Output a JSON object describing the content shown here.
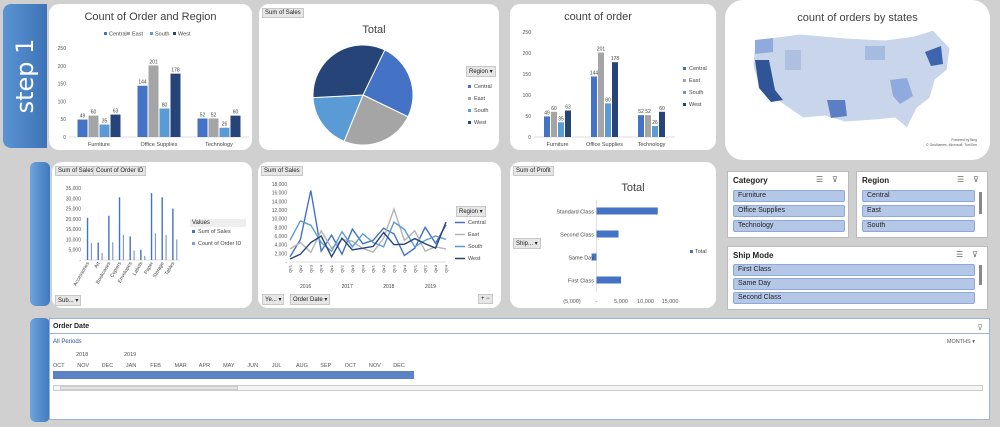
{
  "step_label": "step 1",
  "colors": {
    "central": "#4472c4",
    "east": "#a5a5a5",
    "south": "#5b9bd5",
    "west": "#264478"
  },
  "chart1": {
    "title": "Count of Order and Region"
  },
  "chart2": {
    "title": "count of order"
  },
  "pie": {
    "tag": "Sum of Sales",
    "title": "Total",
    "region_filter": "Region"
  },
  "map": {
    "title": "count of orders by states",
    "footer1": "Powered by Bing",
    "footer2": "© GeoNames, Microsoft, TomTom"
  },
  "sub_chart": {
    "tag1": "Sum of Sales",
    "tag2": "Count of Order ID",
    "values_label": "Values",
    "legend1": "Sum of Sales",
    "legend2": "Count of Order ID",
    "filter": "Sub..."
  },
  "line_chart": {
    "tag": "Sum of Sales",
    "region_filter": "Region",
    "filter1": "Ye...",
    "filter2": "Order Date"
  },
  "profit_chart": {
    "tag": "Sum of Profit",
    "title": "Total",
    "filter": "Ship...",
    "legend": "Total"
  },
  "slicers": {
    "category": {
      "title": "Category",
      "items": [
        "Furniture",
        "Office Supplies",
        "Technology"
      ]
    },
    "region": {
      "title": "Region",
      "items": [
        "Central",
        "East",
        "South"
      ]
    },
    "shipmode": {
      "title": "Ship Mode",
      "items": [
        "First Class",
        "Same Day",
        "Second Class"
      ]
    }
  },
  "timeline": {
    "title": "Order Date",
    "all_periods": "All Periods",
    "unit": "MONTHS",
    "years": [
      "2018",
      "2019"
    ],
    "months": [
      "OCT",
      "NOV",
      "DEC",
      "JAN",
      "FEB",
      "MAR",
      "APR",
      "MAY",
      "JUN",
      "JUL",
      "AUG",
      "SEP",
      "OCT",
      "NOV",
      "DEC"
    ]
  },
  "chart_data": [
    {
      "type": "bar",
      "title": "Count of Order and Region",
      "categories": [
        "Furniture",
        "Office Supplies",
        "Technology"
      ],
      "series": [
        {
          "name": "Central",
          "values": [
            49,
            144,
            52
          ]
        },
        {
          "name": "East",
          "values": [
            60,
            201,
            52
          ]
        },
        {
          "name": "South",
          "values": [
            35,
            80,
            26
          ]
        },
        {
          "name": "West",
          "values": [
            63,
            178,
            60
          ]
        }
      ],
      "ylim": [
        0,
        250
      ],
      "yticks": [
        "0",
        "50",
        "100",
        "150",
        "200",
        "250"
      ]
    },
    {
      "type": "bar",
      "title": "count of order",
      "categories": [
        "Furniture",
        "Office Supplies",
        "Technology"
      ],
      "series": [
        {
          "name": "Central",
          "values": [
            49,
            144,
            52
          ]
        },
        {
          "name": "East",
          "values": [
            60,
            201,
            52
          ]
        },
        {
          "name": "South",
          "values": [
            35,
            80,
            26
          ]
        },
        {
          "name": "West",
          "values": [
            63,
            178,
            60
          ]
        }
      ],
      "ylim": [
        0,
        250
      ],
      "yticks": [
        "0",
        "50",
        "100",
        "150",
        "200",
        "250"
      ]
    },
    {
      "type": "pie",
      "title": "Total",
      "slices": [
        {
          "name": "Central",
          "value": 25
        },
        {
          "name": "East",
          "value": 24
        },
        {
          "name": "South",
          "value": 18
        },
        {
          "name": "West",
          "value": 33
        }
      ]
    },
    {
      "type": "bar",
      "categories": [
        "Accessories",
        "Art",
        "Bookcases",
        "Copiers",
        "Envelopes",
        "Labels",
        "Paper",
        "Storage",
        "Tables"
      ],
      "series": [
        {
          "name": "Sum of Sales",
          "values": [
            20500,
            8500,
            21500,
            30500,
            11500,
            5000,
            32500,
            30500,
            25000
          ]
        }
      ],
      "ylim": [
        0,
        35000
      ],
      "yticks": [
        "-",
        "5,000",
        "10,000",
        "15,000",
        "20,000",
        "25,000",
        "30,000",
        "35,000"
      ]
    },
    {
      "type": "line",
      "categories": [
        "Qtr1",
        "Qtr2",
        "Qtr3",
        "Qtr4",
        "Qtr1",
        "Qtr2",
        "Qtr3",
        "Qtr4",
        "Qtr1",
        "Qtr2",
        "Qtr3",
        "Qtr4",
        "Qtr1",
        "Qtr2",
        "Qtr3",
        "Qtr4"
      ],
      "groups": [
        "2016",
        "2017",
        "2018",
        "2019"
      ],
      "series": [
        {
          "name": "Central",
          "values": [
            1200,
            5200,
            16500,
            2500,
            6200,
            1800,
            7600,
            4200,
            5000,
            7800,
            6500,
            1500,
            3200,
            8000,
            4300,
            8600
          ]
        },
        {
          "name": "East",
          "values": [
            3000,
            4500,
            2200,
            7200,
            3200,
            5200,
            4800,
            3100,
            2300,
            5500,
            12200,
            5000,
            7200,
            2500,
            3500,
            3000
          ]
        },
        {
          "name": "South",
          "values": [
            5000,
            9500,
            8500,
            4500,
            2500,
            7000,
            3500,
            6500,
            4500,
            3500,
            9200,
            7500,
            3500,
            5000,
            6000,
            5200
          ]
        },
        {
          "name": "West",
          "values": [
            700,
            1800,
            4500,
            6000,
            1200,
            5500,
            2800,
            3200,
            3600,
            6800,
            4000,
            4100,
            5400,
            4200,
            3200,
            9200
          ]
        }
      ],
      "ylim": [
        0,
        18000
      ],
      "yticks": [
        "-",
        "2,000",
        "4,000",
        "6,000",
        "8,000",
        "10,000",
        "12,000",
        "14,000",
        "16,000",
        "18,000"
      ]
    },
    {
      "type": "bar",
      "title": "Total",
      "categories": [
        "Standard Class",
        "Second Class",
        "Same Day",
        "First Class"
      ],
      "series": [
        {
          "name": "Total",
          "values": [
            12500,
            4500,
            -1000,
            5000
          ]
        }
      ],
      "xlim": [
        -5000,
        15000
      ],
      "xticks": [
        "(5,000)",
        "-",
        "5,000",
        "10,000",
        "15,000"
      ]
    }
  ]
}
